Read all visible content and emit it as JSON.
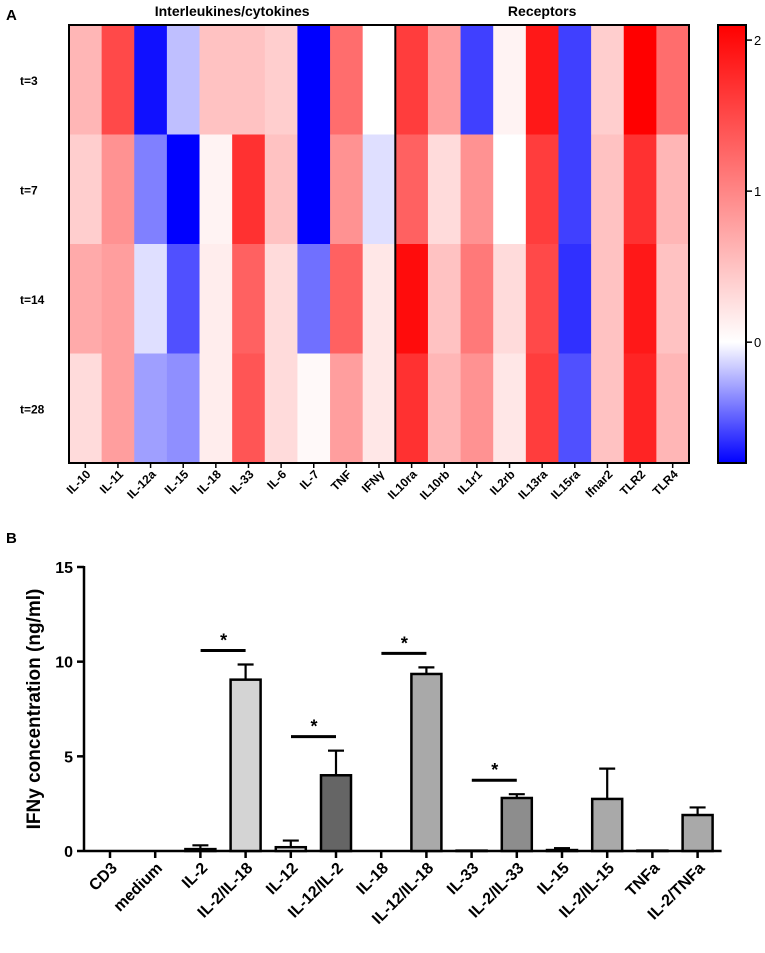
{
  "panels": {
    "a": {
      "label": "A"
    },
    "b": {
      "label": "B"
    }
  },
  "chart_data": [
    {
      "type": "heatmap",
      "panel": "A",
      "groups": [
        {
          "name": "Interleukines/cytokines",
          "columns": [
            "IL-10",
            "IL-11",
            "IL-12a",
            "IL-15",
            "IL-18",
            "IL-33",
            "IL-6",
            "IL-7",
            "TNF",
            "IFNγ"
          ]
        },
        {
          "name": "Receptors",
          "columns": [
            "IL10ra",
            "IL10rb",
            "IL1r1",
            "IL2rb",
            "IL13ra",
            "IL15ra",
            "Ifnar2",
            "TLR2",
            "TLR4"
          ]
        }
      ],
      "columns": [
        "IL-10",
        "IL-11",
        "IL-12a",
        "IL-15",
        "IL-18",
        "IL-33",
        "IL-6",
        "IL-7",
        "TNF",
        "IFNγ",
        "IL10ra",
        "IL10rb",
        "IL1r1",
        "IL2rb",
        "IL13ra",
        "IL15ra",
        "Ifnar2",
        "TLR2",
        "TLR4"
      ],
      "rows": [
        "t=3",
        "t=7",
        "t=14",
        "t=28"
      ],
      "values": [
        [
          0.6,
          1.5,
          -0.75,
          -0.2,
          0.5,
          0.5,
          0.4,
          -0.9,
          1.2,
          0.0,
          1.6,
          0.8,
          -0.6,
          0.1,
          1.9,
          -0.6,
          0.4,
          2.1,
          1.2
        ],
        [
          0.4,
          0.9,
          -0.4,
          -0.85,
          0.1,
          1.7,
          0.5,
          -0.9,
          0.9,
          -0.1,
          1.3,
          0.3,
          0.9,
          0.0,
          1.6,
          -0.6,
          0.5,
          1.7,
          0.6
        ],
        [
          0.7,
          0.8,
          -0.1,
          -0.55,
          0.15,
          1.3,
          0.3,
          -0.45,
          1.3,
          0.2,
          2.0,
          0.5,
          1.1,
          0.3,
          1.5,
          -0.65,
          0.5,
          1.9,
          0.5
        ],
        [
          0.3,
          0.8,
          -0.3,
          -0.35,
          0.15,
          1.4,
          0.3,
          0.05,
          0.8,
          0.2,
          1.7,
          0.6,
          0.9,
          0.2,
          1.6,
          -0.55,
          0.5,
          1.8,
          0.6
        ]
      ],
      "colorscale": {
        "min": -0.8,
        "max": 2.1,
        "center": 0,
        "low_color": "#0000ff",
        "mid_color": "#ffffff",
        "high_color": "#ff0000"
      },
      "colorbar_ticks": [
        "2",
        "1",
        "0"
      ],
      "colorbar_tick_values": [
        2,
        1,
        0
      ]
    },
    {
      "type": "bar",
      "panel": "B",
      "categories": [
        "CD3",
        "medium",
        "IL-2",
        "IL-2/IL-18",
        "IL-12",
        "IL-12/IL-2",
        "IL-18",
        "IL-12/IL-18",
        "IL-33",
        "IL-2/IL-33",
        "IL-15",
        "IL-2/IL-15",
        "TNFa",
        "IL-2/TNFa"
      ],
      "values": [
        0,
        0,
        0.1,
        9.05,
        0.2,
        4.0,
        0,
        9.35,
        0.02,
        2.8,
        0.05,
        2.75,
        0.02,
        1.9
      ],
      "errors": [
        0,
        0,
        0.2,
        0.8,
        0.35,
        1.3,
        0,
        0.35,
        0,
        0.2,
        0.1,
        1.6,
        0,
        0.4
      ],
      "bar_colors": [
        "#ffffff",
        "#ffffff",
        "#ffffff",
        "#d4d4d4",
        "#ffffff",
        "#656565",
        "#ffffff",
        "#a9a9a9",
        "#ffffff",
        "#8d8d8d",
        "#ffffff",
        "#a9a9a9",
        "#ffffff",
        "#a9a9a9"
      ],
      "ylabel": "IFNy concentration (ng/ml)",
      "xlabel": "",
      "ylim": [
        0,
        15
      ],
      "yticks": [
        "0",
        "5",
        "10",
        "15"
      ],
      "ytick_values": [
        0,
        5,
        10,
        15
      ],
      "significance": [
        {
          "category": "IL-2/IL-18",
          "label": "*"
        },
        {
          "category": "IL-12/IL-2",
          "label": "*"
        },
        {
          "category": "IL-12/IL-18",
          "label": "*"
        },
        {
          "category": "IL-2/IL-33",
          "label": "*"
        }
      ]
    }
  ]
}
